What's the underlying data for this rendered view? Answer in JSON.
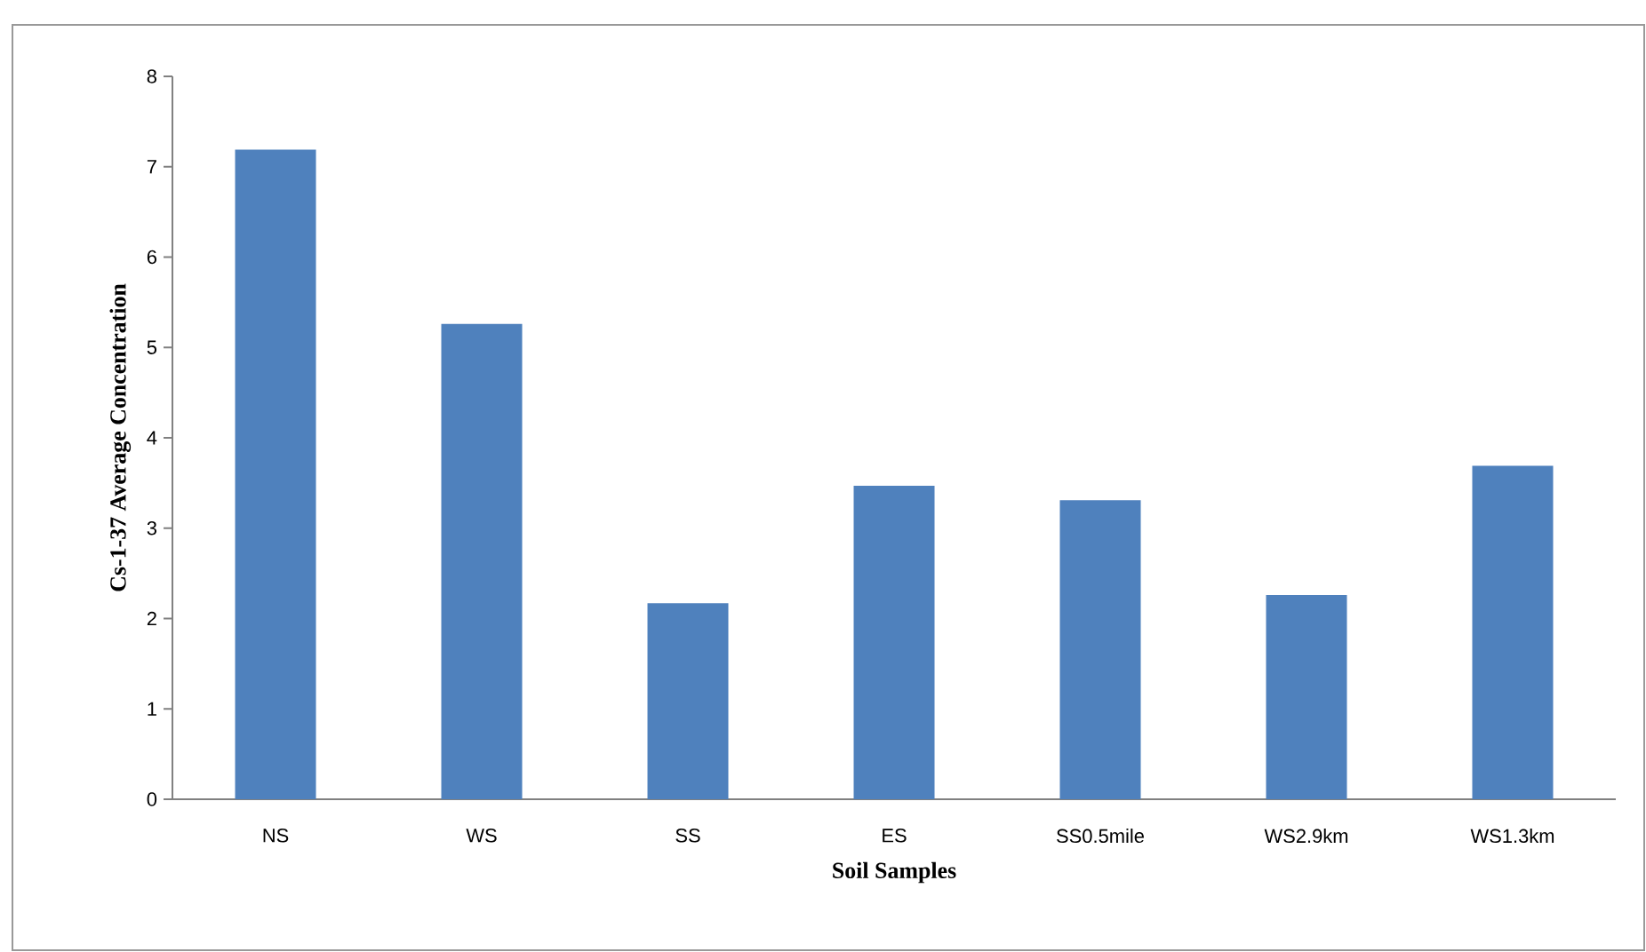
{
  "chart_data": {
    "type": "bar",
    "xlabel": "Soil Samples",
    "ylabel": "Cs-1-37 Average Concentration",
    "categories": [
      "NS",
      "WS",
      "SS",
      "ES",
      "SS0.5mile",
      "WS2.9km",
      "WS1.3km"
    ],
    "values": [
      7.19,
      5.26,
      2.17,
      3.47,
      3.31,
      2.26,
      3.69
    ],
    "color": "#4f81bd",
    "ylim": [
      0,
      8
    ],
    "yticks": [
      0,
      1,
      2,
      3,
      4,
      5,
      6,
      7,
      8
    ]
  }
}
